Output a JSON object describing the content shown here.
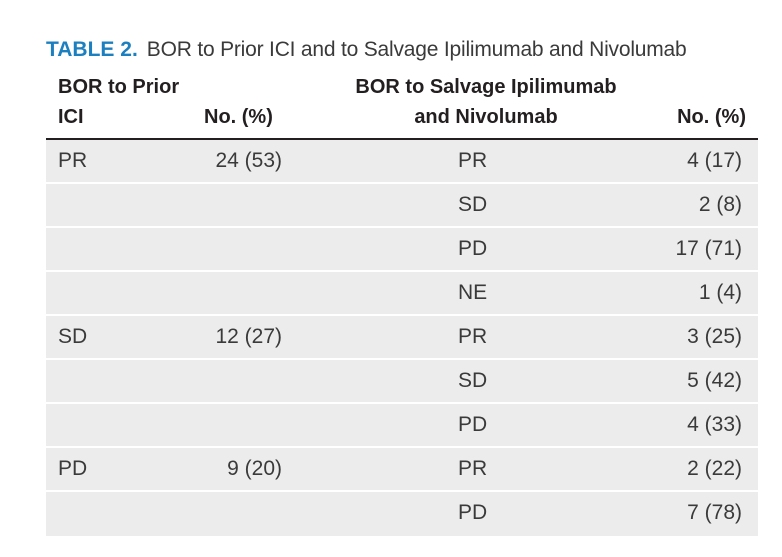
{
  "caption": {
    "label": "TABLE 2.",
    "title": "BOR to Prior ICI and to Salvage Ipilimumab and Nivolumab"
  },
  "header": {
    "bor_prior_line1": "BOR to Prior",
    "bor_prior_line2": "ICI",
    "no_pct_1": "No. (%)",
    "bor_salvage_line1": "BOR to Salvage Ipilimumab",
    "bor_salvage_line2": "and Nivolumab",
    "no_pct_2": "No. (%)"
  },
  "rows": [
    {
      "prior": "PR",
      "prior_no": "24 (53)",
      "salvage": "PR",
      "salvage_no": "4 (17)"
    },
    {
      "prior": "",
      "prior_no": "",
      "salvage": "SD",
      "salvage_no": "2 (8)"
    },
    {
      "prior": "",
      "prior_no": "",
      "salvage": "PD",
      "salvage_no": "17 (71)"
    },
    {
      "prior": "",
      "prior_no": "",
      "salvage": "NE",
      "salvage_no": "1 (4)"
    },
    {
      "prior": "SD",
      "prior_no": "12 (27)",
      "salvage": "PR",
      "salvage_no": "3 (25)"
    },
    {
      "prior": "",
      "prior_no": "",
      "salvage": "SD",
      "salvage_no": "5 (42)"
    },
    {
      "prior": "",
      "prior_no": "",
      "salvage": "PD",
      "salvage_no": "4 (33)"
    },
    {
      "prior": "PD",
      "prior_no": "9 (20)",
      "salvage": "PR",
      "salvage_no": "2 (22)"
    },
    {
      "prior": "",
      "prior_no": "",
      "salvage": "PD",
      "salvage_no": "7 (78)"
    }
  ],
  "colors": {
    "label_blue": "#1c7fbf",
    "row_fill": "#ececec",
    "text": "#231f20"
  }
}
